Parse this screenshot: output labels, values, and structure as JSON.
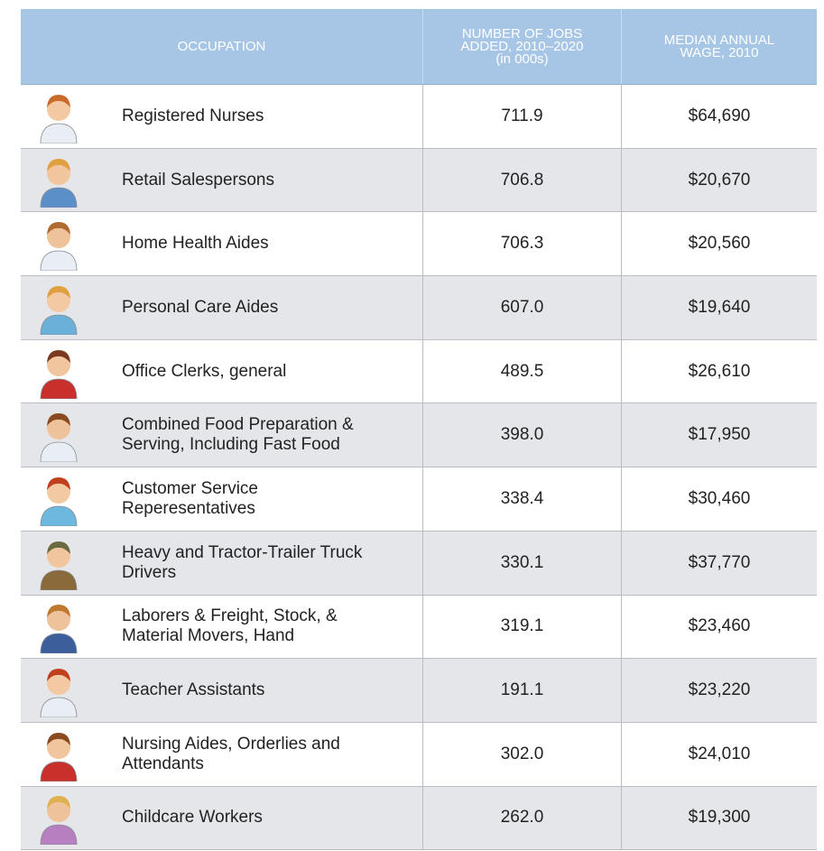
{
  "table": {
    "header": [
      [
        "OCCUPATION"
      ],
      [
        "NUMBER OF JOBS",
        "ADDED, 2010–2020",
        "(in 000s)"
      ],
      [
        "MEDIAN ANNUAL",
        "WAGE, 2010"
      ]
    ],
    "rows": [
      [
        [
          "Registered Nurses"
        ],
        "711.9",
        "$64,690"
      ],
      [
        [
          "Retail Salespersons"
        ],
        "706.8",
        "$20,670"
      ],
      [
        [
          "Home Health Aides"
        ],
        "706.3",
        "$20,560"
      ],
      [
        [
          "Personal Care Aides"
        ],
        "607.0",
        "$19,640"
      ],
      [
        [
          "Office Clerks, general"
        ],
        "489.5",
        "$26,610"
      ],
      [
        [
          "Combined Food Preparation &",
          "Serving, Including Fast Food"
        ],
        "398.0",
        "$17,950"
      ],
      [
        [
          "Customer Service",
          "Reperesentatives"
        ],
        "338.4",
        "$30,460"
      ],
      [
        [
          "Heavy and Tractor-Trailer Truck",
          "Drivers"
        ],
        "330.1",
        "$37,770"
      ],
      [
        [
          "Laborers & Freight, Stock, &",
          "Material Movers, Hand"
        ],
        "319.1",
        "$23,460"
      ],
      [
        [
          "Teacher Assistants"
        ],
        "191.1",
        "$23,220"
      ],
      [
        [
          "Nursing Aides, Orderlies and",
          "Attendants"
        ],
        "302.0",
        "$24,010"
      ],
      [
        [
          "Childcare Workers"
        ],
        "262.0",
        "$19,300"
      ]
    ]
  }
}
